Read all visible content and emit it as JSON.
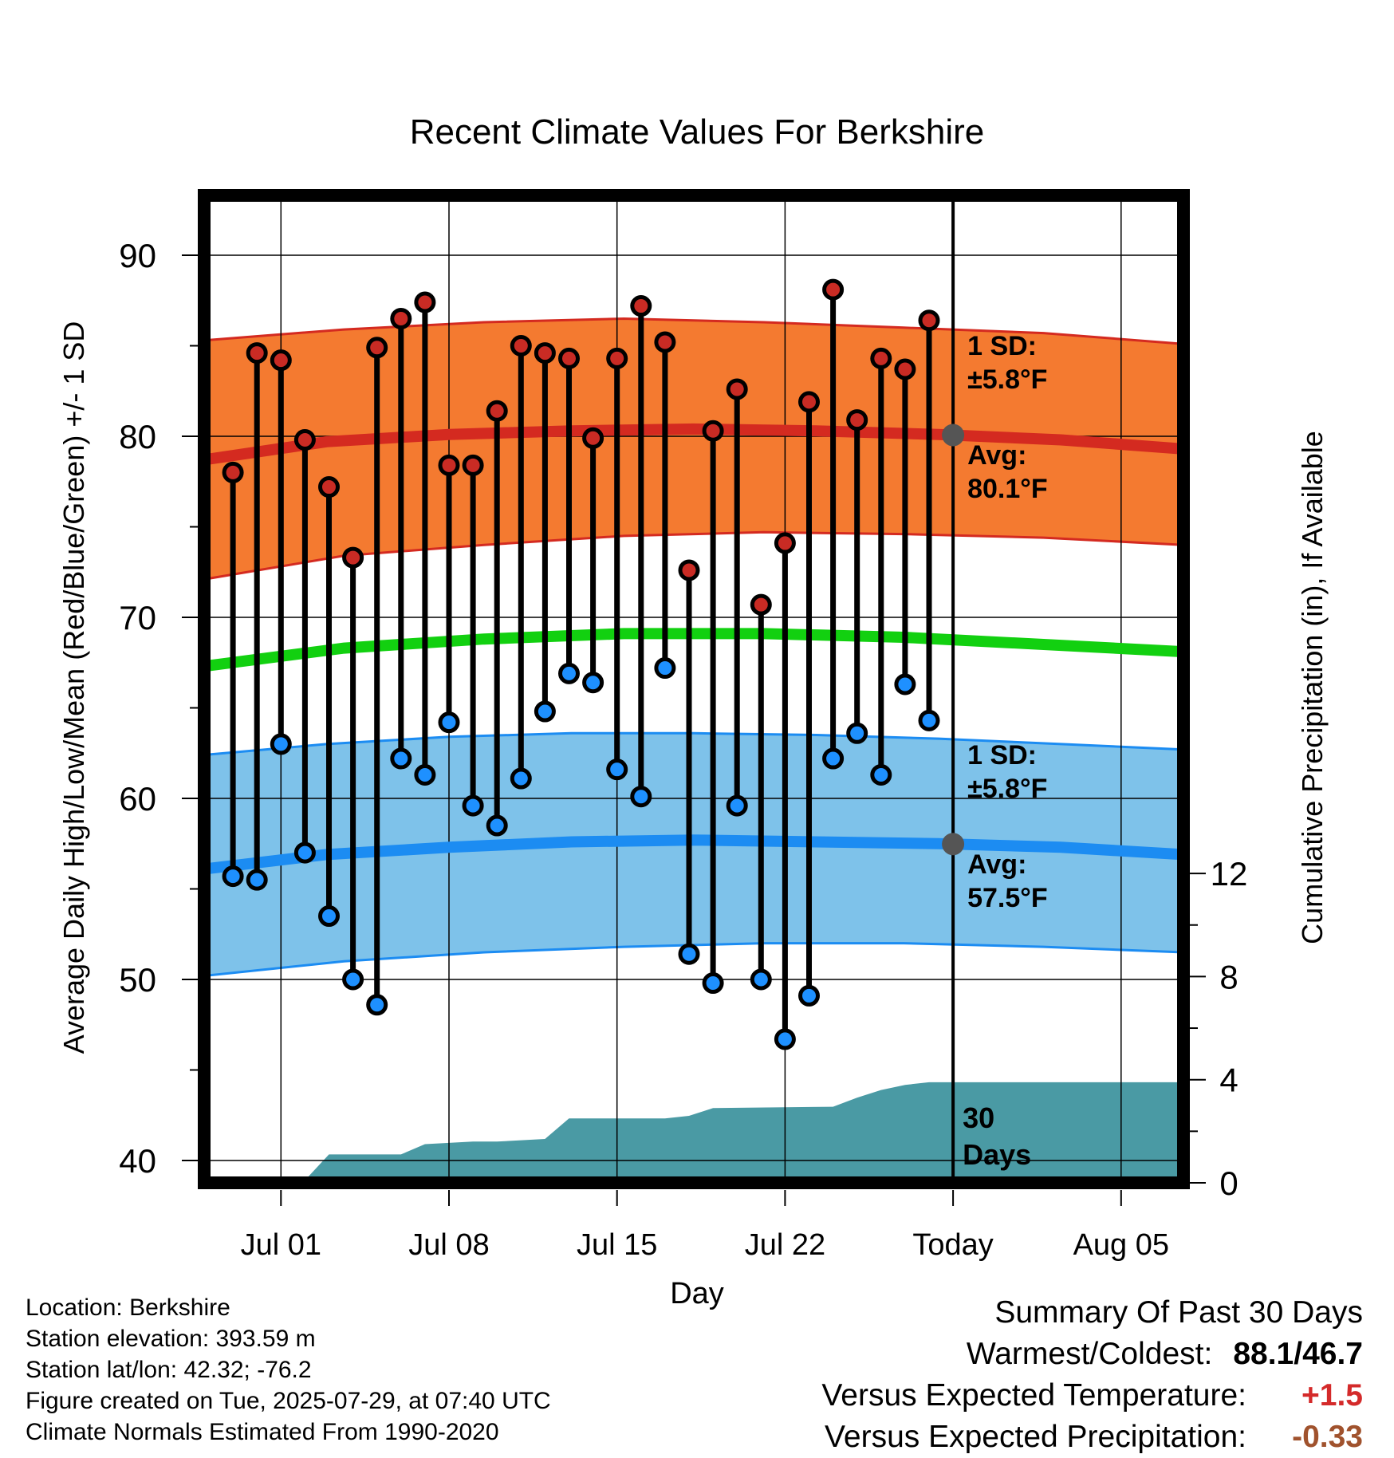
{
  "chart_data": {
    "type": "line",
    "title": "Recent Climate Values For Berkshire",
    "xlabel": "Day",
    "ylabel": "Average Daily High/Low/Mean (Red/Blue/Green) +/- 1 SD",
    "y2label": "Cumulative Precipitation (in), If Available",
    "ylim": [
      39,
      94
    ],
    "y2lim": [
      0,
      19.7
    ],
    "y_ticks": [
      "90",
      "80",
      "70",
      "60",
      "50",
      "40"
    ],
    "y2_ticks": [
      "12",
      "8",
      "4",
      "0"
    ],
    "x_tick_labels": [
      "Jul 01",
      "Jul 08",
      "Jul 15",
      "Jul 22",
      "Today",
      "Aug 05"
    ],
    "x_start": "2025-06-28",
    "today": "2025-07-29",
    "grid": true,
    "period_label": [
      "30",
      "Days"
    ],
    "daily": {
      "dates": [
        "2025-06-29",
        "2025-06-30",
        "2025-07-01",
        "2025-07-02",
        "2025-07-03",
        "2025-07-04",
        "2025-07-05",
        "2025-07-06",
        "2025-07-07",
        "2025-07-08",
        "2025-07-09",
        "2025-07-10",
        "2025-07-11",
        "2025-07-12",
        "2025-07-13",
        "2025-07-14",
        "2025-07-15",
        "2025-07-16",
        "2025-07-17",
        "2025-07-18",
        "2025-07-19",
        "2025-07-20",
        "2025-07-21",
        "2025-07-22",
        "2025-07-23",
        "2025-07-24",
        "2025-07-25",
        "2025-07-26",
        "2025-07-27",
        "2025-07-28"
      ],
      "high": [
        78.0,
        84.6,
        84.2,
        79.8,
        77.2,
        73.3,
        84.9,
        86.5,
        87.4,
        78.4,
        78.4,
        81.4,
        85.0,
        84.6,
        84.3,
        79.9,
        84.3,
        87.2,
        85.2,
        72.6,
        80.3,
        82.6,
        70.7,
        74.1,
        81.9,
        88.1,
        80.9,
        84.3,
        83.7,
        86.4
      ],
      "low": [
        55.7,
        55.5,
        63.0,
        57.0,
        53.5,
        50.0,
        48.6,
        62.2,
        61.3,
        64.2,
        59.6,
        58.5,
        61.1,
        64.8,
        66.9,
        66.4,
        61.6,
        60.1,
        67.2,
        51.4,
        49.8,
        59.6,
        50.0,
        46.7,
        49.1,
        62.2,
        63.6,
        61.3,
        66.3,
        64.3
      ]
    },
    "normals": {
      "high_avg": [
        78.7,
        79.7,
        80.1,
        80.3,
        80.4,
        80.3,
        80.1,
        79.8,
        79.3
      ],
      "high_upper": [
        85.3,
        85.9,
        86.3,
        86.5,
        86.3,
        86.0,
        85.7,
        85.1
      ],
      "high_lower": [
        72.1,
        73.4,
        74.0,
        74.5,
        74.7,
        74.6,
        74.4,
        74.0
      ],
      "mean_avg": [
        67.3,
        68.3,
        68.8,
        69.1,
        69.1,
        68.9,
        68.5,
        68.1
      ],
      "low_avg": [
        56.1,
        56.9,
        57.3,
        57.6,
        57.7,
        57.6,
        57.5,
        57.3,
        56.9
      ],
      "low_upper": [
        62.4,
        63.0,
        63.4,
        63.6,
        63.6,
        63.5,
        63.3,
        63.0,
        62.7
      ],
      "low_lower": [
        50.2,
        51.0,
        51.5,
        51.8,
        52.0,
        52.0,
        51.8,
        51.5
      ]
    },
    "precip_cumulative": {
      "dates": [
        "2025-06-28",
        "2025-07-01",
        "2025-07-02",
        "2025-07-03",
        "2025-07-05",
        "2025-07-06",
        "2025-07-07",
        "2025-07-09",
        "2025-07-10",
        "2025-07-12",
        "2025-07-13",
        "2025-07-17",
        "2025-07-18",
        "2025-07-19",
        "2025-07-24",
        "2025-07-25",
        "2025-07-26",
        "2025-07-27",
        "2025-07-28",
        "2025-08-09"
      ],
      "values": [
        0.0,
        0.1,
        0.1,
        1.1,
        1.1,
        1.1,
        1.5,
        1.6,
        1.6,
        1.7,
        2.5,
        2.5,
        2.6,
        2.9,
        2.95,
        3.3,
        3.6,
        3.8,
        3.9,
        3.9
      ]
    },
    "annotations": {
      "high_sd": [
        "1 SD:",
        "±5.8°F"
      ],
      "high_avg": [
        "Avg:",
        "80.1°F"
      ],
      "low_sd": [
        "1 SD:",
        "±5.8°F"
      ],
      "low_avg": [
        "Avg:",
        "57.5°F"
      ]
    },
    "colors": {
      "high_band": "#f47a30",
      "high_line": "#d42a20",
      "low_band": "#7ec2ea",
      "low_line": "#1c8cf2",
      "mean_line": "#12d010",
      "precip": "#4a9aa4",
      "high_marker": "#c92b24",
      "low_marker": "#1e90ff",
      "annotation_text": "#555555",
      "temp_anomaly": "#d42a2a",
      "precip_anomaly": "#a0522d"
    }
  },
  "footer": {
    "location": "Location: Berkshire",
    "elevation": "Station elevation: 393.59 m",
    "latlon": "Station lat/lon: 42.32; -76.2",
    "created": "Figure created on Tue, 2025-07-29, at 07:40 UTC",
    "normals": "Climate Normals Estimated From 1990-2020"
  },
  "summary": {
    "title": "Summary Of Past 30 Days",
    "warm_cold_label": "Warmest/Coldest:",
    "warm_cold_value": "88.1/46.7",
    "temp_label": "Versus Expected Temperature:",
    "temp_value": "+1.5",
    "precip_label": "Versus Expected Precipitation:",
    "precip_value": "-0.33"
  }
}
